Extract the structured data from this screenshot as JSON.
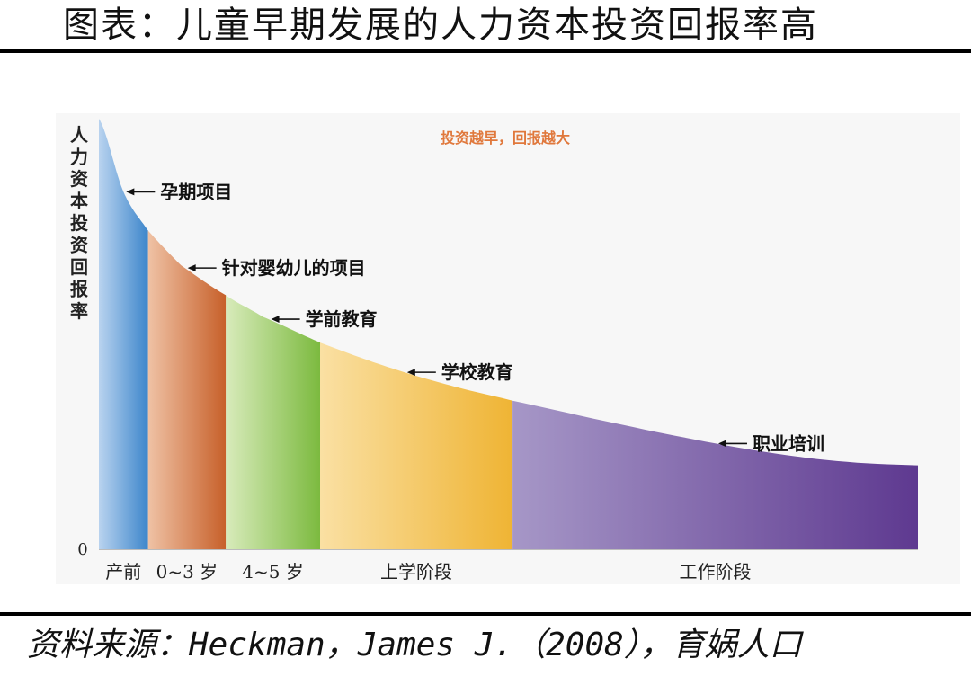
{
  "page": {
    "title": "图表：儿童早期发展的人力资本投资回报率高",
    "source": "资料来源：Heckman，James J.（2008），育娲人口"
  },
  "chart_data": {
    "type": "area",
    "title": "投资越早，回报越大",
    "ylabel": "人力资本投资回报率",
    "y_zero_label": "0",
    "xlim": [
      0,
      10
    ],
    "ylim": [
      0,
      10
    ],
    "stages": [
      {
        "label": "产前",
        "x_start": 0.0,
        "x_end": 0.6,
        "color_light": "#b9d3ef",
        "color_dark": "#3d86cb"
      },
      {
        "label": "0~3 岁",
        "x_start": 0.6,
        "x_end": 1.55,
        "color_light": "#efc2a5",
        "color_dark": "#c7602a"
      },
      {
        "label": "4~5 岁",
        "x_start": 1.55,
        "x_end": 2.7,
        "color_light": "#d8ebbb",
        "color_dark": "#7cba3f"
      },
      {
        "label": "上学阶段",
        "x_start": 2.7,
        "x_end": 5.05,
        "color_light": "#fae0a3",
        "color_dark": "#efb434"
      },
      {
        "label": "工作阶段",
        "x_start": 5.05,
        "x_end": 10.0,
        "color_light": "#a697c7",
        "color_dark": "#5e3990"
      }
    ],
    "curve": {
      "x": [
        0.0,
        0.3,
        0.6,
        1.0,
        1.55,
        2.0,
        2.7,
        3.5,
        4.3,
        5.05,
        6.0,
        7.0,
        8.0,
        9.0,
        10.0
      ],
      "y": [
        10.0,
        8.3,
        7.4,
        6.6,
        5.9,
        5.4,
        4.8,
        4.25,
        3.8,
        3.45,
        3.05,
        2.65,
        2.3,
        2.05,
        1.95
      ]
    },
    "annotations": [
      {
        "text": "孕期项目",
        "x": 0.3
      },
      {
        "text": "针对婴幼儿的项目",
        "x": 1.05
      },
      {
        "text": "学前教育",
        "x": 2.07
      },
      {
        "text": "学校教育",
        "x": 3.73
      },
      {
        "text": "职业培训",
        "x": 7.53
      }
    ],
    "title_color": "#e0783c"
  }
}
